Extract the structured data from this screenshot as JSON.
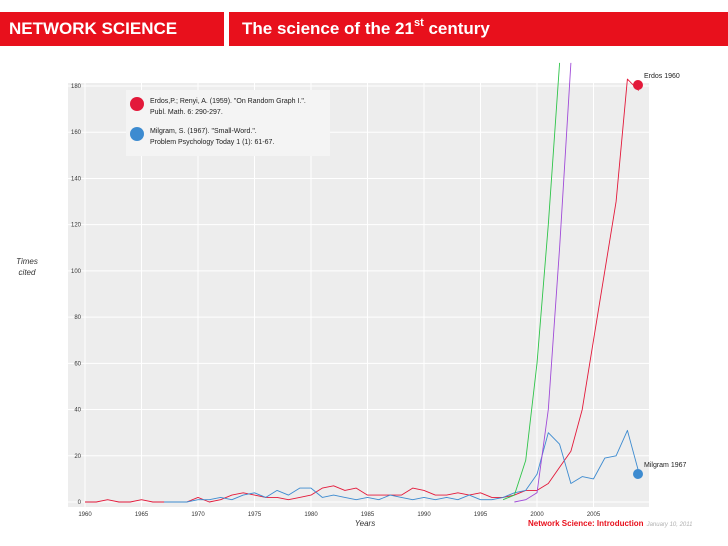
{
  "header": {
    "section": "NETWORK SCIENCE",
    "title_main": "The science of the 21",
    "title_sup": "st",
    "title_end": " century"
  },
  "footer": {
    "text": "Network Science: Introduction",
    "date": "January 10, 2011"
  },
  "colors": {
    "brand_red": "#e8101c",
    "erdos": "#e3193a",
    "milgram": "#3d8bd0",
    "green": "#2fc44a",
    "purple": "#a04bd8"
  },
  "legend": {
    "erdos_line1": "Erdos,P.; Renyi, A. (1959). \"On Random Graph I.\".",
    "erdos_line2": "Publ. Math. 6: 290-297.",
    "milgram_line1": "Milgram, S. (1967). \"Small-Word.\".",
    "milgram_line2": "Problem Psychology Today 1 (1): 61-67."
  },
  "annotations": {
    "erdos": "Erdos 1960",
    "milgram": "Milgram 1967"
  },
  "chart_data": {
    "type": "line",
    "title": "",
    "xlabel": "Years",
    "ylabel_line1": "Times",
    "ylabel_line2": "cited",
    "xlim": [
      1960,
      2010
    ],
    "ylim": [
      0,
      180
    ],
    "xticks": [
      1960,
      1965,
      1970,
      1975,
      1980,
      1985,
      1990,
      1995,
      2000,
      2005
    ],
    "yticks": [
      0,
      20,
      40,
      60,
      80,
      100,
      120,
      140,
      160,
      180
    ],
    "series": [
      {
        "name": "Erdos 1960",
        "color": "#e3193a",
        "x": [
          1960,
          1961,
          1962,
          1963,
          1964,
          1965,
          1966,
          1967,
          1968,
          1969,
          1970,
          1971,
          1972,
          1973,
          1974,
          1975,
          1976,
          1977,
          1978,
          1979,
          1980,
          1981,
          1982,
          1983,
          1984,
          1985,
          1986,
          1987,
          1988,
          1989,
          1990,
          1991,
          1992,
          1993,
          1994,
          1995,
          1996,
          1997,
          1998,
          1999,
          2000,
          2001,
          2002,
          2003,
          2004,
          2005,
          2006,
          2007,
          2008,
          2009
        ],
        "y": [
          0,
          0,
          1,
          0,
          0,
          1,
          0,
          0,
          0,
          0,
          2,
          0,
          1,
          3,
          4,
          3,
          2,
          2,
          1,
          2,
          3,
          6,
          7,
          5,
          6,
          3,
          3,
          3,
          3,
          6,
          5,
          3,
          3,
          4,
          3,
          4,
          2,
          2,
          3,
          5,
          5,
          8,
          15,
          22,
          40,
          70,
          100,
          130,
          183,
          178
        ]
      },
      {
        "name": "Milgram 1967",
        "color": "#3d8bd0",
        "x": [
          1967,
          1968,
          1969,
          1970,
          1971,
          1972,
          1973,
          1974,
          1975,
          1976,
          1977,
          1978,
          1979,
          1980,
          1981,
          1982,
          1983,
          1984,
          1985,
          1986,
          1987,
          1988,
          1989,
          1990,
          1991,
          1992,
          1993,
          1994,
          1995,
          1996,
          1997,
          1998,
          1999,
          2000,
          2001,
          2002,
          2003,
          2004,
          2005,
          2006,
          2007,
          2008,
          2009
        ],
        "y": [
          0,
          0,
          0,
          1,
          1,
          2,
          1,
          3,
          4,
          2,
          5,
          3,
          6,
          6,
          2,
          3,
          2,
          1,
          2,
          1,
          3,
          2,
          1,
          2,
          1,
          2,
          1,
          3,
          1,
          1,
          2,
          4,
          5,
          12,
          30,
          25,
          8,
          11,
          10,
          19,
          20,
          31,
          13
        ]
      },
      {
        "name": "Green",
        "color": "#2fc44a",
        "x": [
          1997,
          1998,
          1999,
          2000,
          2001,
          2002
        ],
        "y": [
          1,
          3,
          18,
          60,
          120,
          190
        ]
      },
      {
        "name": "Purple",
        "color": "#a04bd8",
        "x": [
          1998,
          1999,
          2000,
          2001,
          2002,
          2003
        ],
        "y": [
          0,
          1,
          4,
          40,
          110,
          190
        ]
      }
    ]
  }
}
